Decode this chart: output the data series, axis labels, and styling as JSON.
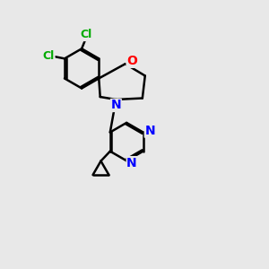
{
  "background_color": "#e8e8e8",
  "bond_color": "#000000",
  "atom_colors": {
    "Cl": "#00aa00",
    "O": "#ff0000",
    "N": "#0000ff"
  },
  "bond_width": 1.8,
  "figsize": [
    3.0,
    3.0
  ],
  "dpi": 100
}
